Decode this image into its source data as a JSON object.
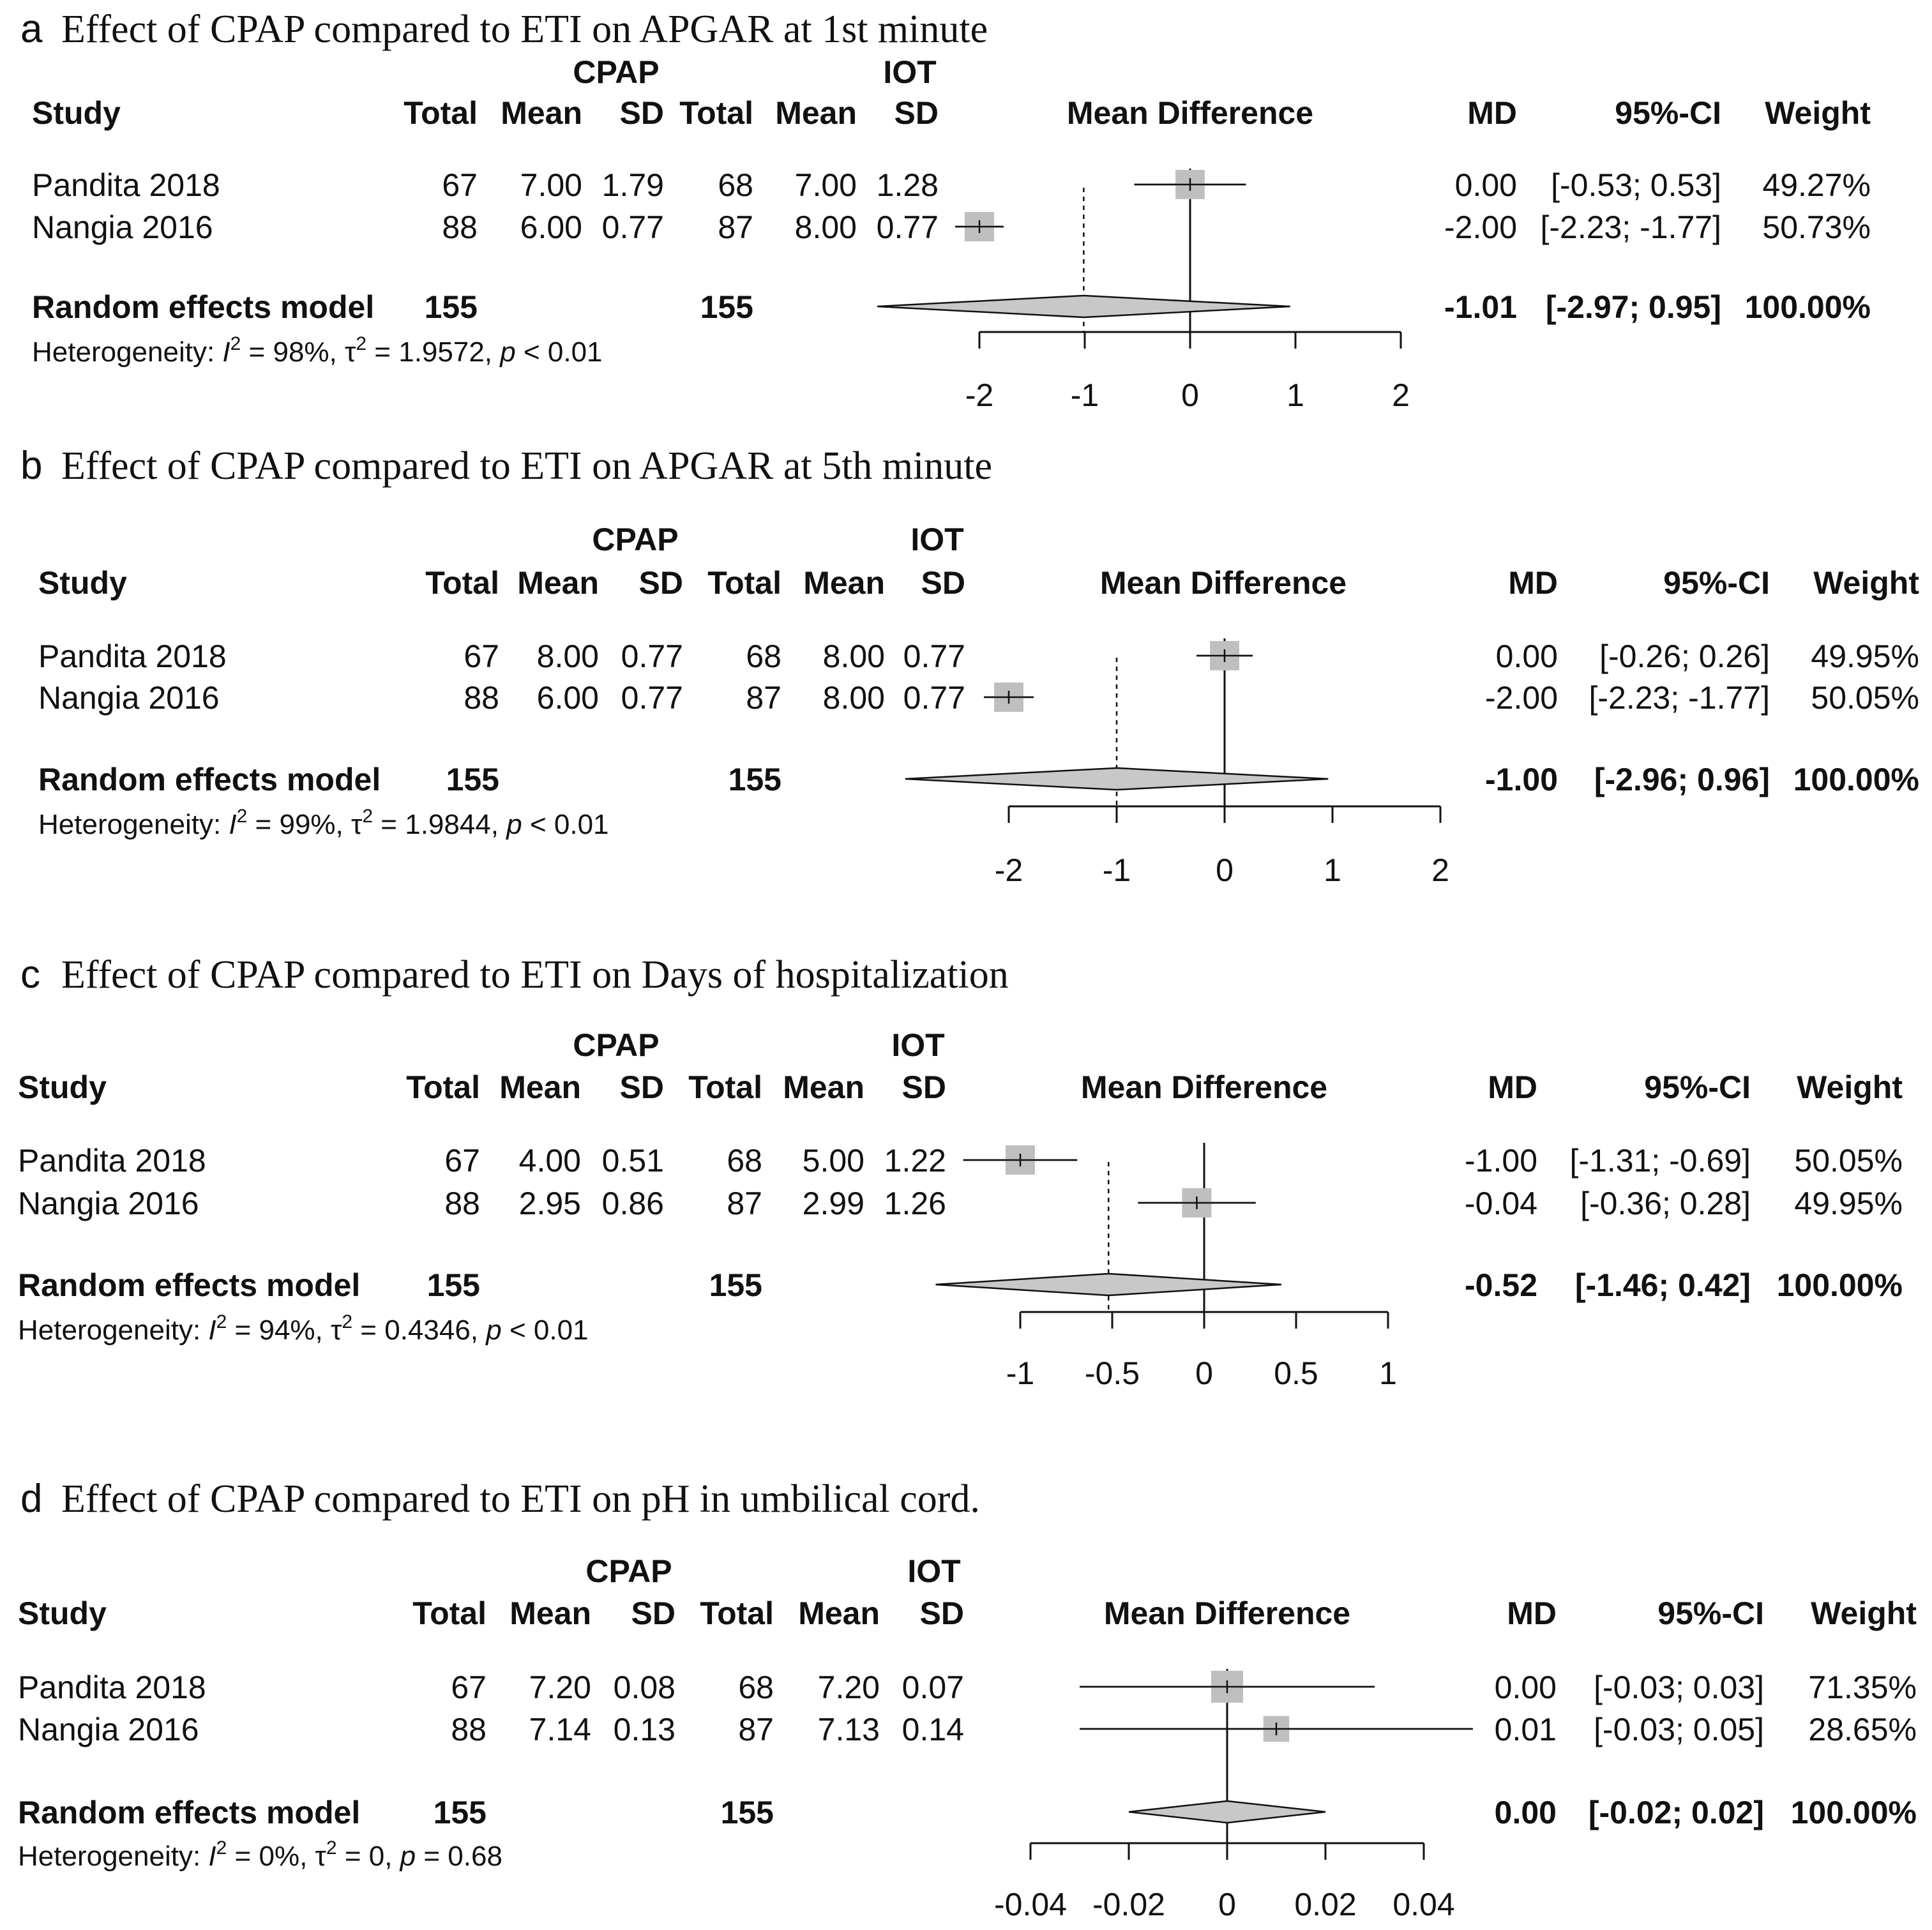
{
  "figure": {
    "columns": {
      "study": "Study",
      "group_a": "CPAP",
      "group_b": "IOT",
      "total": "Total",
      "mean": "Mean",
      "sd": "SD",
      "effect": "Mean Difference",
      "md": "MD",
      "ci": "95%-CI",
      "weight": "Weight"
    }
  },
  "chart_data": [
    {
      "type": "forest",
      "letter": "a",
      "title": "Effect of CPAP compared to ETI on APGAR at 1st minute",
      "xlim": [
        -2,
        2
      ],
      "ticks": [
        -2,
        -1,
        0,
        1,
        2
      ],
      "tick_labels": [
        "-2",
        "-1",
        "0",
        "1",
        "2"
      ],
      "null_value": 0,
      "studies": [
        {
          "name": "Pandita 2018",
          "a_total": "67",
          "a_mean": "7.00",
          "a_sd": "1.79",
          "b_total": "68",
          "b_mean": "7.00",
          "b_sd": "1.28",
          "md": 0.0,
          "lower": -0.53,
          "upper": 0.53,
          "weight": 49.27,
          "md_text": "0.00",
          "ci_text": "[-0.53;  0.53]",
          "weight_text": "49.27%"
        },
        {
          "name": "Nangia 2016",
          "a_total": "88",
          "a_mean": "6.00",
          "a_sd": "0.77",
          "b_total": "87",
          "b_mean": "8.00",
          "b_sd": "0.77",
          "md": -2.0,
          "lower": -2.23,
          "upper": -1.77,
          "weight": 50.73,
          "md_text": "-2.00",
          "ci_text": "[-2.23; -1.77]",
          "weight_text": "50.73%"
        }
      ],
      "pooled": {
        "label": "Random effects model",
        "a_total": "155",
        "b_total": "155",
        "md": -1.01,
        "lower": -2.97,
        "upper": 0.95,
        "md_text": "-1.01",
        "ci_text": "[-2.97;  0.95]",
        "weight_text": "100.00%"
      },
      "heterogeneity": {
        "prefix": "Heterogeneity: ",
        "i2_symbol": "I",
        "sup": "2",
        "i2_text": " = 98%, ",
        "tau_symbol": "τ",
        "tau_text": " = 1.9572, ",
        "p_symbol": "p",
        "p_text": " < 0.01"
      }
    },
    {
      "type": "forest",
      "letter": "b",
      "title": "Effect of CPAP compared to ETI on APGAR at 5th minute",
      "xlim": [
        -2,
        2
      ],
      "ticks": [
        -2,
        -1,
        0,
        1,
        2
      ],
      "tick_labels": [
        "-2",
        "-1",
        "0",
        "1",
        "2"
      ],
      "null_value": 0,
      "studies": [
        {
          "name": "Pandita 2018",
          "a_total": "67",
          "a_mean": "8.00",
          "a_sd": "0.77",
          "b_total": "68",
          "b_mean": "8.00",
          "b_sd": "0.77",
          "md": 0.0,
          "lower": -0.26,
          "upper": 0.26,
          "weight": 49.95,
          "md_text": "0.00",
          "ci_text": "[-0.26;  0.26]",
          "weight_text": "49.95%"
        },
        {
          "name": "Nangia 2016",
          "a_total": "88",
          "a_mean": "6.00",
          "a_sd": "0.77",
          "b_total": "87",
          "b_mean": "8.00",
          "b_sd": "0.77",
          "md": -2.0,
          "lower": -2.23,
          "upper": -1.77,
          "weight": 50.05,
          "md_text": "-2.00",
          "ci_text": "[-2.23; -1.77]",
          "weight_text": "50.05%"
        }
      ],
      "pooled": {
        "label": "Random effects model",
        "a_total": "155",
        "b_total": "155",
        "md": -1.0,
        "lower": -2.96,
        "upper": 0.96,
        "md_text": "-1.00",
        "ci_text": "[-2.96;  0.96]",
        "weight_text": "100.00%"
      },
      "heterogeneity": {
        "prefix": "Heterogeneity: ",
        "i2_symbol": "I",
        "sup": "2",
        "i2_text": " = 99%, ",
        "tau_symbol": "τ",
        "tau_text": " = 1.9844, ",
        "p_symbol": "p",
        "p_text": " < 0.01"
      }
    },
    {
      "type": "forest",
      "letter": "c",
      "title": "Effect of CPAP compared to ETI on Days of hospitalization",
      "xlim": [
        -1,
        1
      ],
      "ticks": [
        -1,
        -0.5,
        0,
        0.5,
        1
      ],
      "tick_labels": [
        "-1",
        "-0.5",
        "0",
        "0.5",
        "1"
      ],
      "null_value": 0,
      "studies": [
        {
          "name": "Pandita 2018",
          "a_total": "67",
          "a_mean": "4.00",
          "a_sd": "0.51",
          "b_total": "68",
          "b_mean": "5.00",
          "b_sd": "1.22",
          "md": -1.0,
          "lower": -1.31,
          "upper": -0.69,
          "weight": 50.05,
          "md_text": "-1.00",
          "ci_text": "[-1.31; -0.69]",
          "weight_text": "50.05%"
        },
        {
          "name": "Nangia 2016",
          "a_total": "88",
          "a_mean": "2.95",
          "a_sd": "0.86",
          "b_total": "87",
          "b_mean": "2.99",
          "b_sd": "1.26",
          "md": -0.04,
          "lower": -0.36,
          "upper": 0.28,
          "weight": 49.95,
          "md_text": "-0.04",
          "ci_text": "[-0.36;  0.28]",
          "weight_text": "49.95%"
        }
      ],
      "pooled": {
        "label": "Random effects model",
        "a_total": "155",
        "b_total": "155",
        "md": -0.52,
        "lower": -1.46,
        "upper": 0.42,
        "md_text": "-0.52",
        "ci_text": "[-1.46;  0.42]",
        "weight_text": "100.00%"
      },
      "heterogeneity": {
        "prefix": "Heterogeneity: ",
        "i2_symbol": "I",
        "sup": "2",
        "i2_text": " = 94%, ",
        "tau_symbol": "τ",
        "tau_text": " = 0.4346, ",
        "p_symbol": "p",
        "p_text": " < 0.01"
      }
    },
    {
      "type": "forest",
      "letter": "d",
      "title": "Effect of CPAP compared to ETI on pH in umbilical cord.",
      "xlim": [
        -0.04,
        0.04
      ],
      "ticks": [
        -0.04,
        -0.02,
        0,
        0.02,
        0.04
      ],
      "tick_labels": [
        "-0.04",
        "-0.02",
        "0",
        "0.02",
        "0.04"
      ],
      "null_value": 0,
      "studies": [
        {
          "name": "Pandita 2018",
          "a_total": "67",
          "a_mean": "7.20",
          "a_sd": "0.08",
          "b_total": "68",
          "b_mean": "7.20",
          "b_sd": "0.07",
          "md": 0.0,
          "lower": -0.03,
          "upper": 0.03,
          "weight": 71.35,
          "md_text": "0.00",
          "ci_text": "[-0.03; 0.03]",
          "weight_text": "71.35%"
        },
        {
          "name": "Nangia 2016",
          "a_total": "88",
          "a_mean": "7.14",
          "a_sd": "0.13",
          "b_total": "87",
          "b_mean": "7.13",
          "b_sd": "0.14",
          "md": 0.01,
          "lower": -0.03,
          "upper": 0.05,
          "weight": 28.65,
          "md_text": "0.01",
          "ci_text": "[-0.03; 0.05]",
          "weight_text": "28.65%"
        }
      ],
      "pooled": {
        "label": "Random effects model",
        "a_total": "155",
        "b_total": "155",
        "md": 0.0,
        "lower": -0.02,
        "upper": 0.02,
        "md_text": "0.00",
        "ci_text": "[-0.02; 0.02]",
        "weight_text": "100.00%"
      },
      "heterogeneity": {
        "prefix": "Heterogeneity: ",
        "i2_symbol": "I",
        "sup": "2",
        "i2_text": " = 0%, ",
        "tau_symbol": "τ",
        "tau_text": " = 0, ",
        "p_symbol": "p",
        "p_text": " = 0.68"
      }
    }
  ]
}
